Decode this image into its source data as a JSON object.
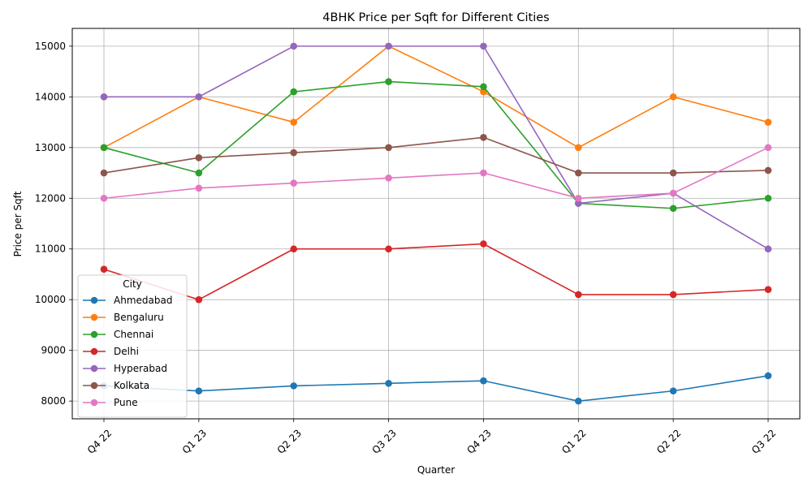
{
  "chart_data": {
    "type": "line",
    "title": "4BHK Price per Sqft for Different Cities",
    "xlabel": "Quarter",
    "ylabel": "Price per Sqft",
    "categories": [
      "Q4 22",
      "Q1 23",
      "Q2 23",
      "Q3 23",
      "Q4 23",
      "Q1 22",
      "Q2 22",
      "Q3 22"
    ],
    "ylim": [
      7650,
      15350
    ],
    "yticks": [
      8000,
      9000,
      10000,
      11000,
      12000,
      13000,
      14000,
      15000
    ],
    "grid": true,
    "legend": {
      "title": "City",
      "placement": "lower-left"
    },
    "series": [
      {
        "name": "Ahmedabad",
        "color": "#1f77b4",
        "values": [
          8300,
          8200,
          8300,
          8350,
          8400,
          8000,
          8200,
          8500
        ]
      },
      {
        "name": "Bengaluru",
        "color": "#ff7f0e",
        "values": [
          13000,
          14000,
          13500,
          15000,
          14100,
          13000,
          14000,
          13500
        ]
      },
      {
        "name": "Chennai",
        "color": "#2ca02c",
        "values": [
          13000,
          12500,
          14100,
          14300,
          14200,
          11900,
          11800,
          12000
        ]
      },
      {
        "name": "Delhi",
        "color": "#d62728",
        "values": [
          10600,
          10000,
          11000,
          11000,
          11100,
          10100,
          10100,
          10200
        ]
      },
      {
        "name": "Hyperabad",
        "color": "#9467bd",
        "values": [
          14000,
          14000,
          15000,
          15000,
          15000,
          11900,
          12100,
          11000
        ]
      },
      {
        "name": "Kolkata",
        "color": "#8c564b",
        "values": [
          12500,
          12800,
          12900,
          13000,
          13200,
          12500,
          12500,
          12550
        ]
      },
      {
        "name": "Pune",
        "color": "#e377c2",
        "values": [
          12000,
          12200,
          12300,
          12400,
          12500,
          12000,
          12100,
          13000
        ]
      }
    ]
  }
}
